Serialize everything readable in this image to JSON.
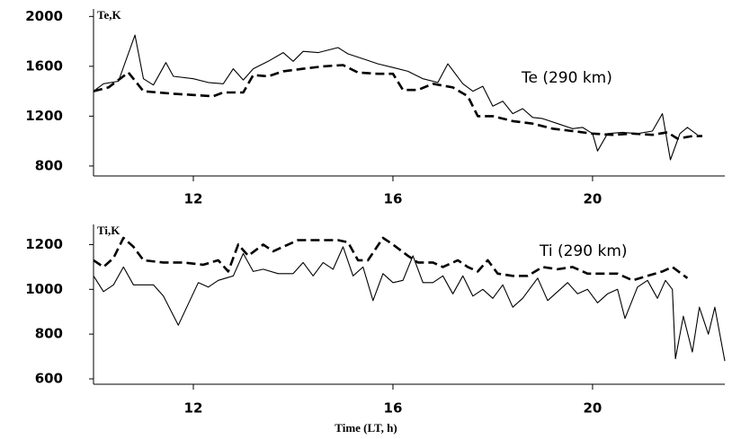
{
  "chart_data": [
    {
      "type": "line",
      "ylabel": "Te,K",
      "annotation": "Te (290 km)",
      "xlim": [
        10,
        22.65
      ],
      "xticks": [
        12,
        16,
        20
      ],
      "ylim": [
        720,
        2060
      ],
      "yticks": [
        800,
        1200,
        1600,
        2000
      ],
      "series": [
        {
          "color": "#000000",
          "style": "solid",
          "x": [
            10.0,
            10.2,
            10.5,
            10.83,
            11.0,
            11.2,
            11.45,
            11.6,
            12.0,
            12.3,
            12.6,
            12.8,
            13.0,
            13.2,
            13.5,
            13.8,
            14.0,
            14.2,
            14.5,
            14.8,
            14.9,
            15.1,
            15.4,
            15.7,
            16.0,
            16.3,
            16.6,
            16.9,
            17.1,
            17.4,
            17.6,
            17.8,
            18.0,
            18.2,
            18.4,
            18.6,
            18.8,
            19.0,
            19.3,
            19.6,
            19.8,
            20.0,
            20.1,
            20.3,
            20.6,
            20.9,
            21.2,
            21.4,
            21.56,
            21.75,
            21.9,
            22.1
          ],
          "values": [
            1400,
            1460,
            1480,
            1850,
            1500,
            1450,
            1630,
            1520,
            1500,
            1470,
            1460,
            1580,
            1490,
            1580,
            1640,
            1710,
            1640,
            1720,
            1710,
            1740,
            1750,
            1700,
            1660,
            1620,
            1590,
            1560,
            1500,
            1470,
            1620,
            1460,
            1400,
            1440,
            1280,
            1320,
            1220,
            1260,
            1190,
            1180,
            1140,
            1100,
            1110,
            1060,
            920,
            1060,
            1070,
            1060,
            1080,
            1220,
            850,
            1060,
            1110,
            1050
          ]
        },
        {
          "color": "#000000",
          "style": "dashed",
          "x": [
            10.0,
            10.3,
            10.7,
            11.0,
            11.3,
            11.6,
            12.0,
            12.4,
            12.6,
            13.0,
            13.2,
            13.5,
            13.8,
            14.2,
            14.6,
            15.0,
            15.3,
            15.7,
            16.0,
            16.2,
            16.5,
            16.8,
            17.2,
            17.5,
            17.7,
            18.0,
            18.4,
            18.8,
            19.2,
            19.6,
            20.0,
            20.4,
            20.8,
            21.2,
            21.5,
            21.7,
            22.0,
            22.2
          ],
          "values": [
            1400,
            1430,
            1550,
            1400,
            1390,
            1380,
            1370,
            1360,
            1390,
            1390,
            1530,
            1520,
            1560,
            1580,
            1600,
            1610,
            1550,
            1540,
            1540,
            1410,
            1410,
            1460,
            1430,
            1360,
            1200,
            1200,
            1160,
            1140,
            1100,
            1080,
            1060,
            1050,
            1060,
            1050,
            1070,
            1020,
            1040,
            1040
          ]
        }
      ]
    },
    {
      "type": "line",
      "ylabel": "Ti,K",
      "annotation": "Ti (290 km)",
      "xlabel": "Time (LT, h)",
      "xlim": [
        10,
        22.65
      ],
      "xticks": [
        12,
        16,
        20
      ],
      "ylim": [
        576,
        1290
      ],
      "yticks": [
        600,
        800,
        1000,
        1200
      ],
      "series": [
        {
          "color": "#000000",
          "style": "solid",
          "x": [
            10.0,
            10.2,
            10.4,
            10.6,
            10.8,
            11.2,
            11.4,
            11.7,
            12.1,
            12.3,
            12.5,
            12.8,
            13.0,
            13.2,
            13.4,
            13.7,
            14.0,
            14.2,
            14.4,
            14.6,
            14.8,
            15.0,
            15.2,
            15.4,
            15.6,
            15.8,
            16.0,
            16.2,
            16.4,
            16.6,
            16.8,
            17.0,
            17.2,
            17.4,
            17.6,
            17.8,
            18.0,
            18.2,
            18.4,
            18.6,
            18.9,
            19.1,
            19.3,
            19.5,
            19.7,
            19.9,
            20.1,
            20.3,
            20.5,
            20.65,
            20.9,
            21.1,
            21.3,
            21.46,
            21.6,
            21.66,
            21.82,
            22.0,
            22.14,
            22.32,
            22.45,
            22.65
          ],
          "values": [
            1060,
            990,
            1020,
            1100,
            1020,
            1020,
            970,
            840,
            1030,
            1010,
            1040,
            1060,
            1160,
            1080,
            1090,
            1070,
            1070,
            1120,
            1060,
            1120,
            1090,
            1190,
            1060,
            1100,
            950,
            1070,
            1030,
            1040,
            1150,
            1030,
            1030,
            1060,
            980,
            1060,
            970,
            1000,
            960,
            1020,
            920,
            960,
            1050,
            950,
            990,
            1030,
            980,
            1000,
            940,
            980,
            1000,
            870,
            1010,
            1040,
            960,
            1040,
            1000,
            690,
            880,
            720,
            920,
            800,
            920,
            680
          ]
        },
        {
          "color": "#000000",
          "style": "dashed",
          "x": [
            10.0,
            10.2,
            10.4,
            10.6,
            10.8,
            11.0,
            11.4,
            11.8,
            12.2,
            12.5,
            12.7,
            12.9,
            13.1,
            13.4,
            13.6,
            13.9,
            14.1,
            14.5,
            14.9,
            15.1,
            15.3,
            15.5,
            15.8,
            16.0,
            16.3,
            16.5,
            16.8,
            17.0,
            17.3,
            17.5,
            17.7,
            17.9,
            18.1,
            18.4,
            18.7,
            19.0,
            19.3,
            19.6,
            19.9,
            20.2,
            20.5,
            20.8,
            21.1,
            21.4,
            21.6,
            21.9
          ],
          "values": [
            1130,
            1100,
            1140,
            1230,
            1190,
            1130,
            1120,
            1120,
            1110,
            1130,
            1080,
            1200,
            1150,
            1200,
            1170,
            1200,
            1220,
            1220,
            1220,
            1210,
            1130,
            1130,
            1230,
            1200,
            1150,
            1120,
            1120,
            1100,
            1130,
            1100,
            1080,
            1130,
            1070,
            1060,
            1060,
            1100,
            1090,
            1100,
            1070,
            1070,
            1070,
            1040,
            1060,
            1080,
            1100,
            1050
          ]
        }
      ]
    }
  ]
}
